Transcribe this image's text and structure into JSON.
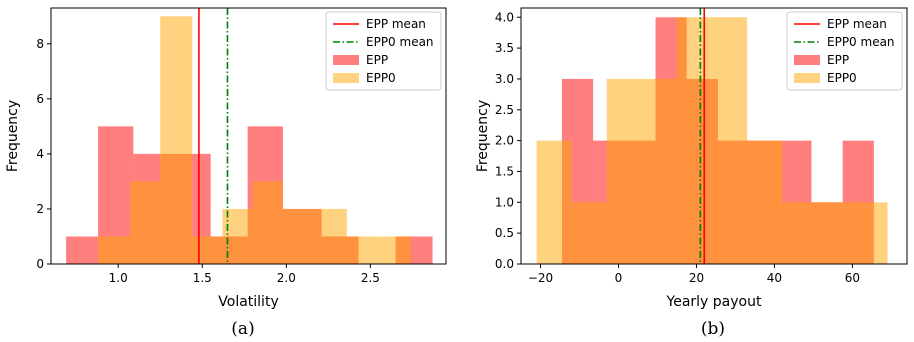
{
  "chart_data": [
    {
      "type": "bar",
      "caption": "(a)",
      "xlabel": "Volatility",
      "ylabel": "Frequency",
      "xlim": [
        0.6,
        2.95
      ],
      "ylim": [
        0,
        9.3
      ],
      "xticks": [
        1.0,
        1.5,
        2.0,
        2.5
      ],
      "xtick_labels": [
        "1.0",
        "1.5",
        "2.0",
        "2.5"
      ],
      "yticks": [
        0,
        2,
        4,
        6,
        8
      ],
      "ytick_labels": [
        "0",
        "2",
        "4",
        "6",
        "8"
      ],
      "legend": {
        "placement": "top-right",
        "entries": [
          "EPP mean",
          "EPP0 mean",
          "EPP",
          "EPP0"
        ]
      },
      "series": [
        {
          "name": "EPP",
          "color": "#ff0000",
          "bins": [
            {
              "x0": 0.69,
              "x1": 0.88,
              "count": 1
            },
            {
              "x0": 0.88,
              "x1": 1.09,
              "count": 5
            },
            {
              "x0": 1.09,
              "x1": 1.25,
              "count": 4
            },
            {
              "x0": 1.25,
              "x1": 1.44,
              "count": 4
            },
            {
              "x0": 1.44,
              "x1": 1.55,
              "count": 4
            },
            {
              "x0": 1.55,
              "x1": 1.77,
              "count": 1
            },
            {
              "x0": 1.77,
              "x1": 1.98,
              "count": 5
            },
            {
              "x0": 1.98,
              "x1": 2.21,
              "count": 2
            },
            {
              "x0": 2.21,
              "x1": 2.43,
              "count": 1
            },
            {
              "x0": 2.65,
              "x1": 2.87,
              "count": 1
            }
          ]
        },
        {
          "name": "EPP0",
          "color": "#ffa500",
          "bins": [
            {
              "x0": 0.88,
              "x1": 1.07,
              "count": 1
            },
            {
              "x0": 1.07,
              "x1": 1.25,
              "count": 3
            },
            {
              "x0": 1.25,
              "x1": 1.44,
              "count": 9
            },
            {
              "x0": 1.44,
              "x1": 1.62,
              "count": 1
            },
            {
              "x0": 1.62,
              "x1": 1.8,
              "count": 2
            },
            {
              "x0": 1.8,
              "x1": 1.98,
              "count": 3
            },
            {
              "x0": 1.98,
              "x1": 2.17,
              "count": 2
            },
            {
              "x0": 2.17,
              "x1": 2.36,
              "count": 2
            },
            {
              "x0": 2.36,
              "x1": 2.55,
              "count": 1
            },
            {
              "x0": 2.55,
              "x1": 2.74,
              "count": 1
            }
          ]
        }
      ],
      "means": [
        {
          "name": "EPP mean",
          "value": 1.48,
          "color": "#ff0000",
          "style": "solid"
        },
        {
          "name": "EPP0 mean",
          "value": 1.65,
          "color": "#008000",
          "style": "dashdot"
        }
      ]
    },
    {
      "type": "bar",
      "caption": "(b)",
      "xlabel": "Yearly payout",
      "ylabel": "Frequency",
      "xlim": [
        -25,
        74
      ],
      "ylim": [
        0,
        4.15
      ],
      "xticks": [
        -20,
        0,
        20,
        40,
        60
      ],
      "xtick_labels": [
        "−20",
        "0",
        "20",
        "40",
        "60"
      ],
      "yticks": [
        0,
        0.5,
        1.0,
        1.5,
        2.0,
        2.5,
        3.0,
        3.5,
        4.0
      ],
      "ytick_labels": [
        "0.0",
        "0.5",
        "1.0",
        "1.5",
        "2.0",
        "2.5",
        "3.0",
        "3.5",
        "4.0"
      ],
      "legend": {
        "placement": "top-right",
        "entries": [
          "EPP mean",
          "EPP0 mean",
          "EPP",
          "EPP0"
        ]
      },
      "series": [
        {
          "name": "EPP",
          "color": "#ff0000",
          "bins": [
            {
              "x0": -14.5,
              "x1": -6.5,
              "count": 3
            },
            {
              "x0": -6.5,
              "x1": 1.5,
              "count": 2
            },
            {
              "x0": 1.5,
              "x1": 9.5,
              "count": 2
            },
            {
              "x0": 9.5,
              "x1": 17.5,
              "count": 4
            },
            {
              "x0": 17.5,
              "x1": 25.5,
              "count": 3
            },
            {
              "x0": 25.5,
              "x1": 33.5,
              "count": 2
            },
            {
              "x0": 33.5,
              "x1": 41.5,
              "count": 2
            },
            {
              "x0": 41.5,
              "x1": 49.5,
              "count": 2
            },
            {
              "x0": 49.5,
              "x1": 57.5,
              "count": 1
            },
            {
              "x0": 57.5,
              "x1": 65.5,
              "count": 2
            }
          ]
        },
        {
          "name": "EPP0",
          "color": "#ffa500",
          "bins": [
            {
              "x0": -21,
              "x1": -12,
              "count": 2
            },
            {
              "x0": -12,
              "x1": -3,
              "count": 1
            },
            {
              "x0": -3,
              "x1": 6,
              "count": 3
            },
            {
              "x0": 6,
              "x1": 15,
              "count": 3
            },
            {
              "x0": 15,
              "x1": 24,
              "count": 4
            },
            {
              "x0": 24,
              "x1": 33,
              "count": 4
            },
            {
              "x0": 33,
              "x1": 42,
              "count": 2
            },
            {
              "x0": 42,
              "x1": 51,
              "count": 1
            },
            {
              "x0": 51,
              "x1": 60,
              "count": 1
            },
            {
              "x0": 60,
              "x1": 69,
              "count": 1
            }
          ]
        }
      ],
      "means": [
        {
          "name": "EPP mean",
          "value": 22,
          "color": "#ff0000",
          "style": "solid"
        },
        {
          "name": "EPP0 mean",
          "value": 21,
          "color": "#008000",
          "style": "dashdot"
        }
      ]
    }
  ]
}
